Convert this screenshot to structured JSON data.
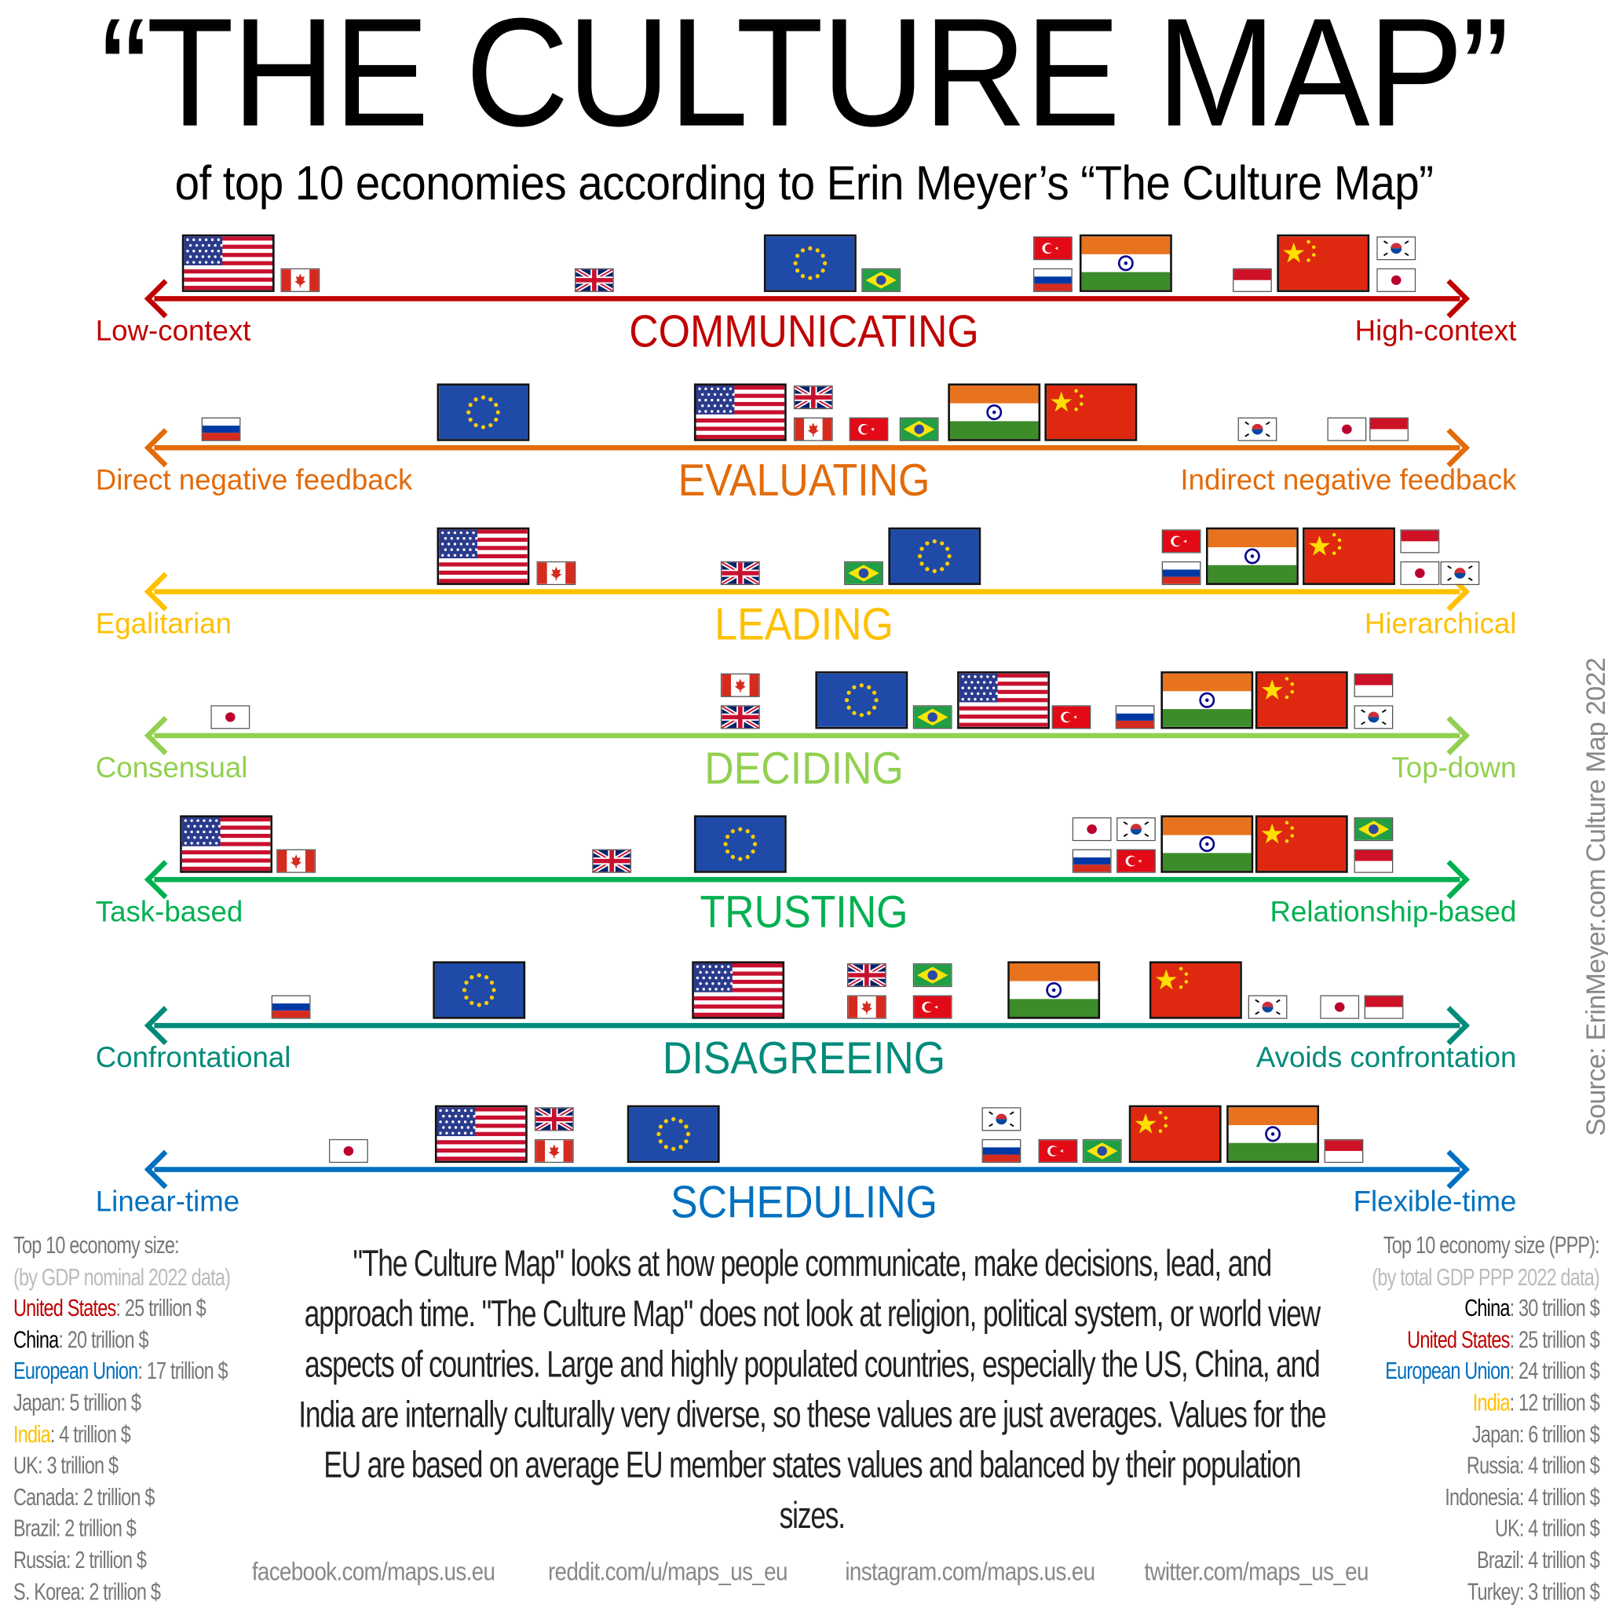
{
  "title": "“THE CULTURE MAP”",
  "subtitle": "of top 10 economies according to Erin Meyer’s “The Culture Map”",
  "big_flags": [
    "us",
    "eu",
    "cn",
    "in"
  ],
  "scales": [
    {
      "title": "COMMUNICATING",
      "left": "Low-context",
      "right": "High-context",
      "color": "#c00000",
      "flags": [
        {
          "country": "us",
          "pos": 5.7
        },
        {
          "country": "ca",
          "pos": 11.2
        },
        {
          "country": "uk",
          "pos": 33.7
        },
        {
          "country": "eu",
          "pos": 50.2
        },
        {
          "country": "br",
          "pos": 55.7
        },
        {
          "country": "tr",
          "pos": 68.8
        },
        {
          "country": "ru",
          "pos": 68.8
        },
        {
          "country": "in",
          "pos": 74.4
        },
        {
          "country": "id",
          "pos": 84.1
        },
        {
          "country": "cn",
          "pos": 89.5
        },
        {
          "country": "kr",
          "pos": 95.1
        },
        {
          "country": "jp",
          "pos": 95.1
        }
      ]
    },
    {
      "title": "EVALUATING",
      "left": "Direct negative feedback",
      "right": "Indirect negative feedback",
      "color": "#e26b0a",
      "flags": [
        {
          "country": "ru",
          "pos": 5.1
        },
        {
          "country": "eu",
          "pos": 25.2
        },
        {
          "country": "us",
          "pos": 44.9
        },
        {
          "country": "uk",
          "pos": 50.5
        },
        {
          "country": "ca",
          "pos": 50.5
        },
        {
          "country": "tr",
          "pos": 54.7
        },
        {
          "country": "br",
          "pos": 58.6
        },
        {
          "country": "in",
          "pos": 64.3
        },
        {
          "country": "cn",
          "pos": 71.7
        },
        {
          "country": "kr",
          "pos": 84.5
        },
        {
          "country": "jp",
          "pos": 91.3
        },
        {
          "country": "id",
          "pos": 94.6
        }
      ]
    },
    {
      "title": "LEADING",
      "left": "Egalitarian",
      "right": "Hierarchical",
      "color": "#ffc000",
      "flags": [
        {
          "country": "us",
          "pos": 25.2
        },
        {
          "country": "ca",
          "pos": 30.8
        },
        {
          "country": "uk",
          "pos": 44.9
        },
        {
          "country": "br",
          "pos": 54.3
        },
        {
          "country": "eu",
          "pos": 59.8
        },
        {
          "country": "tr",
          "pos": 78.7
        },
        {
          "country": "ru",
          "pos": 78.7
        },
        {
          "country": "in",
          "pos": 84.1
        },
        {
          "country": "cn",
          "pos": 91.5
        },
        {
          "country": "id",
          "pos": 96.9
        },
        {
          "country": "jp",
          "pos": 96.9
        },
        {
          "country": "kr",
          "pos": 100
        }
      ]
    },
    {
      "title": "DECIDING",
      "left": "Consensual",
      "right": "Top-down",
      "color": "#92d050",
      "flags": [
        {
          "country": "jp",
          "pos": 5.8
        },
        {
          "country": "ca",
          "pos": 44.9
        },
        {
          "country": "uk",
          "pos": 44.9
        },
        {
          "country": "eu",
          "pos": 54.2
        },
        {
          "country": "br",
          "pos": 59.6
        },
        {
          "country": "us",
          "pos": 65
        },
        {
          "country": "tr",
          "pos": 70.2
        },
        {
          "country": "ru",
          "pos": 75.1
        },
        {
          "country": "in",
          "pos": 80.6
        },
        {
          "country": "cn",
          "pos": 87.9
        },
        {
          "country": "id",
          "pos": 93.4
        },
        {
          "country": "kr",
          "pos": 93.4
        }
      ]
    },
    {
      "title": "TRUSTING",
      "left": "Task-based",
      "right": "Relationship-based",
      "color": "#00b050",
      "flags": [
        {
          "country": "us",
          "pos": 5.5
        },
        {
          "country": "ca",
          "pos": 10.9
        },
        {
          "country": "uk",
          "pos": 35
        },
        {
          "country": "eu",
          "pos": 44.9
        },
        {
          "country": "jp",
          "pos": 71.8
        },
        {
          "country": "ru",
          "pos": 71.8
        },
        {
          "country": "kr",
          "pos": 75.2
        },
        {
          "country": "tr",
          "pos": 75.2
        },
        {
          "country": "in",
          "pos": 80.6
        },
        {
          "country": "cn",
          "pos": 87.9
        },
        {
          "country": "br",
          "pos": 93.4
        },
        {
          "country": "id",
          "pos": 93.4
        }
      ]
    },
    {
      "title": "DISAGREEING",
      "left": "Confrontational",
      "right": "Avoids confrontation",
      "color": "#008b7a",
      "flags": [
        {
          "country": "ru",
          "pos": 10.5
        },
        {
          "country": "eu",
          "pos": 24.9
        },
        {
          "country": "us",
          "pos": 44.7
        },
        {
          "country": "uk",
          "pos": 54.6
        },
        {
          "country": "ca",
          "pos": 54.6
        },
        {
          "country": "br",
          "pos": 59.6
        },
        {
          "country": "tr",
          "pos": 59.6
        },
        {
          "country": "in",
          "pos": 68.9
        },
        {
          "country": "cn",
          "pos": 79.8
        },
        {
          "country": "kr",
          "pos": 85.3
        },
        {
          "country": "jp",
          "pos": 90.8
        },
        {
          "country": "id",
          "pos": 94.2
        }
      ]
    },
    {
      "title": "SCHEDULING",
      "left": "Linear-time",
      "right": "Flexible-time",
      "color": "#0070c0",
      "flags": [
        {
          "country": "jp",
          "pos": 14.9
        },
        {
          "country": "us",
          "pos": 25
        },
        {
          "country": "uk",
          "pos": 30.6
        },
        {
          "country": "ca",
          "pos": 30.6
        },
        {
          "country": "eu",
          "pos": 39.8
        },
        {
          "country": "kr",
          "pos": 64.9
        },
        {
          "country": "ru",
          "pos": 64.9
        },
        {
          "country": "tr",
          "pos": 69.2
        },
        {
          "country": "br",
          "pos": 72.6
        },
        {
          "country": "cn",
          "pos": 78.2
        },
        {
          "country": "in",
          "pos": 85.7
        },
        {
          "country": "id",
          "pos": 91.1
        }
      ]
    }
  ],
  "legend_left": {
    "heading": "Top 10 economy size:",
    "subheading": "(by GDP nominal 2022 data)",
    "items": [
      {
        "name": "United States",
        "value": "25 trillion $",
        "color": "#c00000"
      },
      {
        "name": "China",
        "value": "20 trillion $",
        "color": "#000000"
      },
      {
        "name": "European Union",
        "value": "17 trillion $",
        "color": "#0070c0"
      },
      {
        "name": "Japan",
        "value": "5 trillion $",
        "color": "#777777"
      },
      {
        "name": "India",
        "value": "4 trillion $",
        "color": "#ffc000"
      },
      {
        "name": "UK",
        "value": "3 trillion $",
        "color": "#777777"
      },
      {
        "name": "Canada",
        "value": "2 trillion $",
        "color": "#777777"
      },
      {
        "name": "Brazil",
        "value": "2 trillion $",
        "color": "#777777"
      },
      {
        "name": "Russia",
        "value": "2 trillion $",
        "color": "#777777"
      },
      {
        "name": "S. Korea",
        "value": "2 trillion $",
        "color": "#777777"
      }
    ]
  },
  "legend_right": {
    "heading": "Top 10 economy size (PPP):",
    "subheading": "(by total GDP PPP 2022 data)",
    "items": [
      {
        "name": "China",
        "value": "30 trillion $",
        "color": "#000000"
      },
      {
        "name": "United States",
        "value": "25 trillion $",
        "color": "#c00000"
      },
      {
        "name": "European Union",
        "value": "24 trillion $",
        "color": "#0070c0"
      },
      {
        "name": "India",
        "value": "12 trillion $",
        "color": "#ffc000"
      },
      {
        "name": "Japan",
        "value": "6 trillion $",
        "color": "#777777"
      },
      {
        "name": "Russia",
        "value": "4 trillion $",
        "color": "#777777"
      },
      {
        "name": "Indonesia",
        "value": "4 trillion $",
        "color": "#777777"
      },
      {
        "name": "UK",
        "value": "4 trillion $",
        "color": "#777777"
      },
      {
        "name": "Brazil",
        "value": "4 trillion $",
        "color": "#777777"
      },
      {
        "name": "Turkey",
        "value": "3 trillion $",
        "color": "#777777"
      }
    ]
  },
  "description": "\"The Culture Map\" looks at how people communicate, make decisions, lead, and approach time. \"The Culture Map\" does not look at religion, political system, or world view aspects of countries. Large and highly populated countries, especially the US, China, and India are internally culturally very diverse, so these values are just averages. Values for the EU are based on average EU member states values and balanced by their population sizes.",
  "links": [
    "facebook.com/maps.us.eu",
    "reddit.com/u/maps_us_eu",
    "instagram.com/maps.us.eu",
    "twitter.com/maps_us_eu"
  ],
  "source": "Source: ErinMeyer.com Culture Map 2022"
}
